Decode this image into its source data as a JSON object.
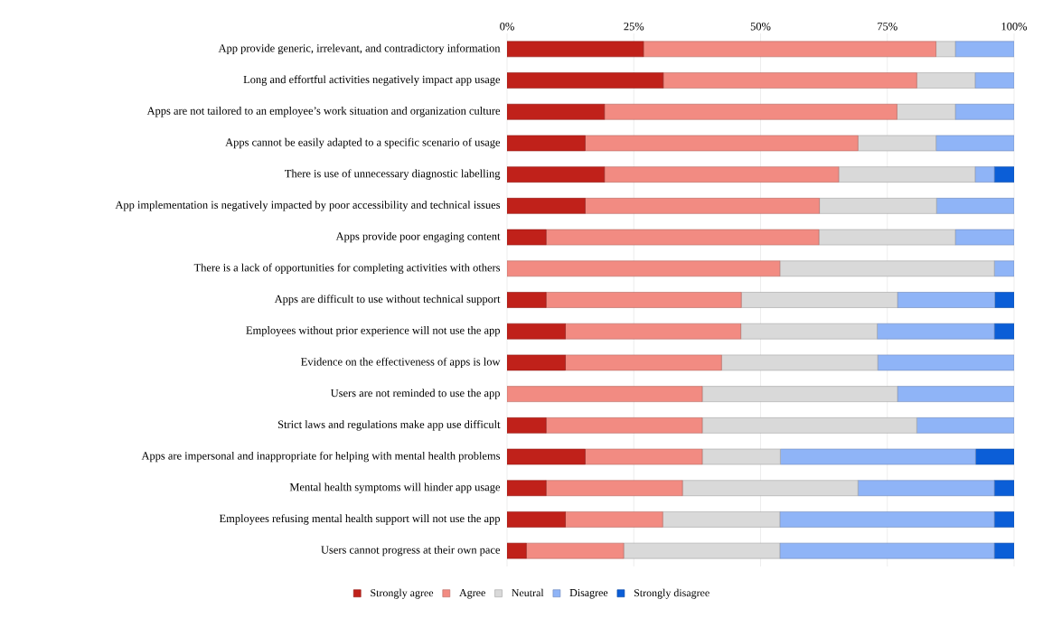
{
  "chart_data": {
    "type": "bar",
    "orientation": "horizontal",
    "stacked": true,
    "categories": [
      "App provide generic, irrelevant, and contradictory information",
      "Long and effortful activities negatively impact app usage",
      "Apps are not tailored to an employee’s work situation and organization culture",
      "Apps cannot be easily adapted to a specific scenario of usage",
      "There is use of unnecessary diagnostic labelling",
      "App implementation is negatively impacted by poor accessibility and technical issues",
      "Apps provide poor engaging content",
      "There is a lack of opportunities for completing activities with others",
      "Apps are difficult to use without technical support",
      "Employees without prior experience will not use the app",
      "Evidence on the effectiveness of apps is low",
      "Users are not reminded to use the app",
      "Strict laws and regulations make app use difficult",
      "Apps are impersonal and inappropriate for helping with mental health problems",
      "Mental health symptoms will hinder app usage",
      "Employees refusing mental health support will not use the app",
      "Users cannot progress at their own pace"
    ],
    "series": [
      {
        "name": "Strongly agree",
        "color": "#c0211a",
        "values": [
          26.9,
          30.8,
          19.2,
          15.4,
          19.2,
          15.4,
          7.7,
          0,
          7.7,
          11.5,
          11.5,
          0,
          7.7,
          15.4,
          7.7,
          11.5,
          3.8
        ]
      },
      {
        "name": "Agree",
        "color": "#f28b82",
        "values": [
          57.7,
          50.0,
          57.7,
          53.8,
          46.2,
          46.2,
          53.8,
          53.8,
          38.5,
          34.6,
          30.8,
          38.5,
          30.8,
          23.1,
          26.9,
          19.2,
          19.2
        ]
      },
      {
        "name": "Neutral",
        "color": "#d9d9d9",
        "values": [
          3.8,
          11.5,
          11.5,
          15.4,
          26.9,
          23.1,
          26.9,
          42.3,
          30.8,
          26.9,
          30.8,
          38.5,
          42.3,
          15.4,
          34.6,
          23.1,
          30.8
        ]
      },
      {
        "name": "Disagree",
        "color": "#8fb4f7",
        "values": [
          11.6,
          7.7,
          11.6,
          15.4,
          3.8,
          15.3,
          11.6,
          3.9,
          19.2,
          23.1,
          26.9,
          23.0,
          19.2,
          38.5,
          26.9,
          42.3,
          42.3
        ]
      },
      {
        "name": "Strongly disagree",
        "color": "#0b5ed7",
        "values": [
          0,
          0,
          0,
          0,
          3.9,
          0,
          0,
          0,
          3.8,
          3.9,
          0,
          0,
          0,
          7.6,
          3.9,
          3.9,
          3.9
        ]
      }
    ],
    "xlim": [
      0,
      100
    ],
    "xticks": [
      {
        "value": 0,
        "label": "0%"
      },
      {
        "value": 25,
        "label": "25%"
      },
      {
        "value": 50,
        "label": "50%"
      },
      {
        "value": 75,
        "label": "75%"
      },
      {
        "value": 100,
        "label": "100%"
      }
    ],
    "grid": "x",
    "legend": "bottom"
  }
}
